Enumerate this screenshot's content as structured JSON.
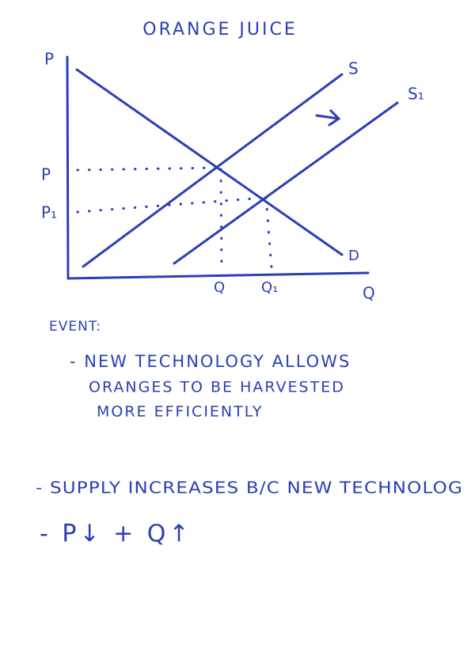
{
  "title": "ORANGE JUICE",
  "graph": {
    "y_axis_label": "P",
    "x_axis_label": "Q",
    "curves": {
      "supply": "S",
      "new_supply": "S₁",
      "demand": "D"
    },
    "price_levels": [
      "P",
      "P₁"
    ],
    "quantity_levels": [
      "Q",
      "Q₁"
    ]
  },
  "notes": {
    "event_heading": "EVENT:",
    "event_lines": [
      "- NEW TECHNOLOGY ALLOWS",
      "ORANGES TO BE HARVESTED",
      "MORE EFFICIENTLY"
    ],
    "conclusions": [
      "- SUPPLY INCREASES B/C NEW TECHNOLOG",
      "- P↓ + Q↑"
    ]
  }
}
